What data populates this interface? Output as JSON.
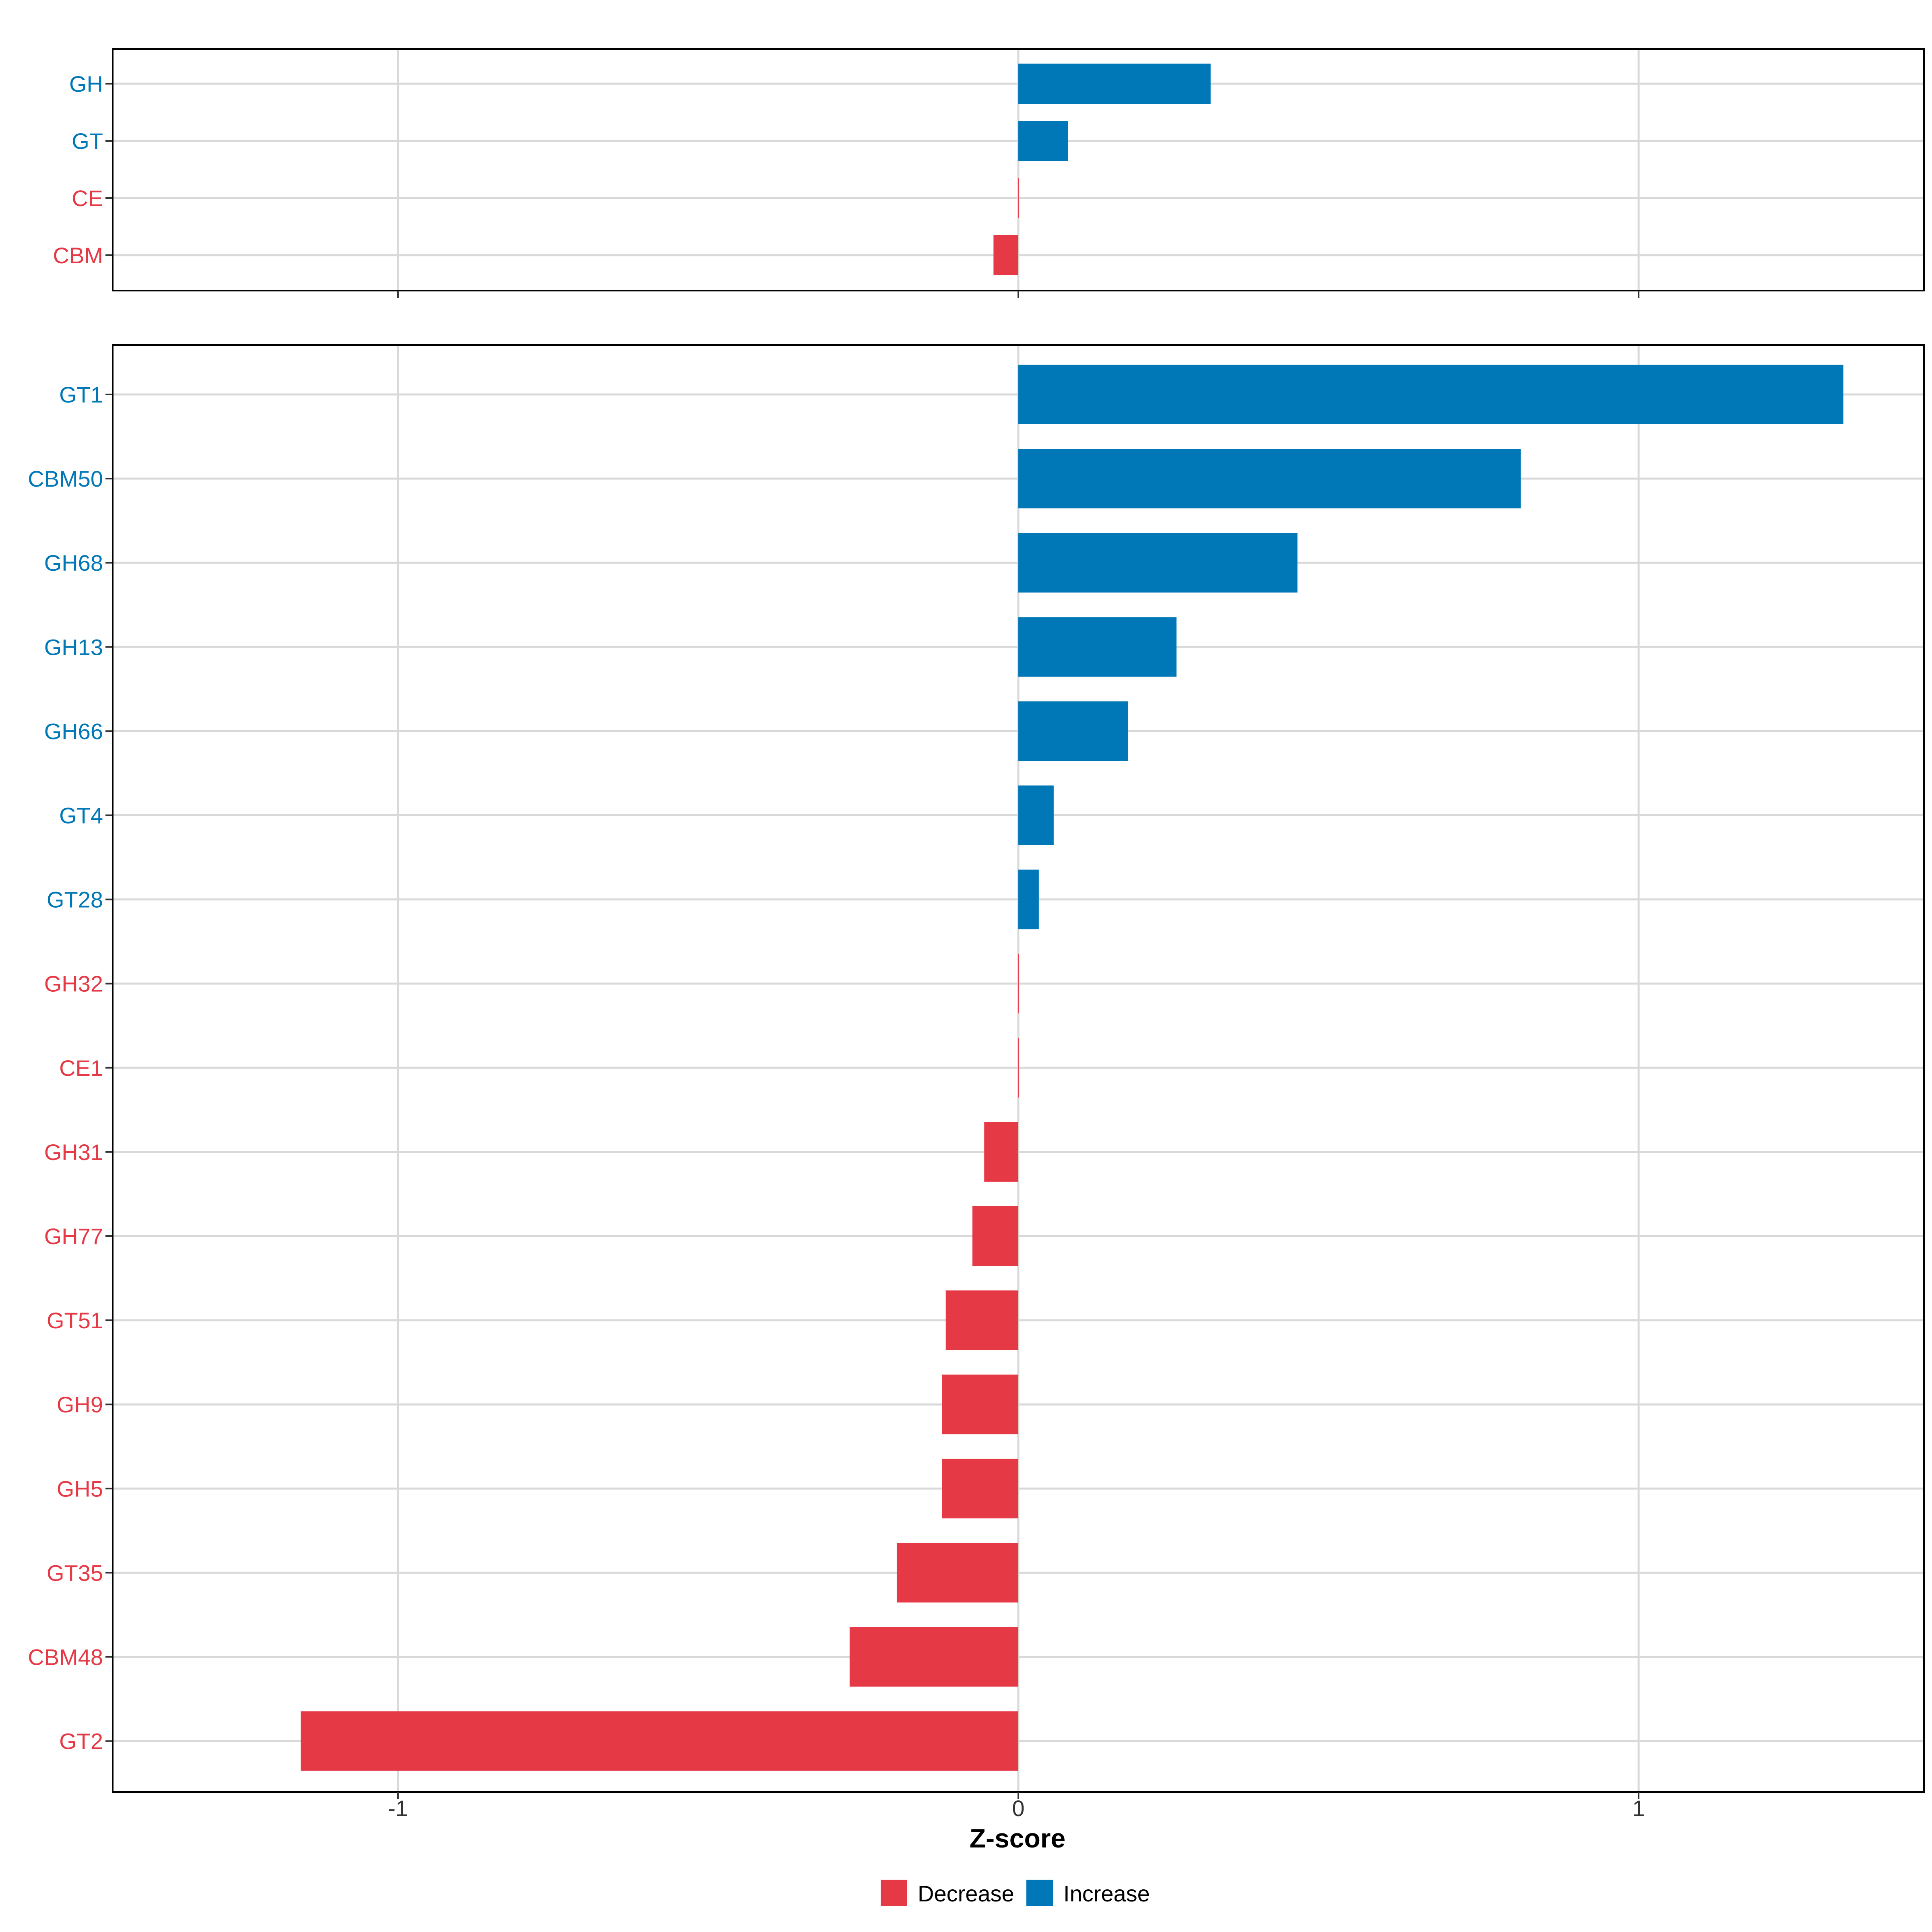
{
  "colors": {
    "decrease": "#E63946",
    "increase": "#0077B6",
    "grid": "#D9D9D9",
    "frame": "#000000",
    "text": "#333333"
  },
  "chart_data": {
    "type": "bar",
    "orientation": "horizontal",
    "xlabel": "Z-score",
    "xlim": [
      -1.46,
      1.46
    ],
    "x_ticks": [
      -1,
      0,
      1
    ],
    "x_tick_labels": [
      "-1",
      "0",
      "1"
    ],
    "grid": true,
    "legend": {
      "placement": "bottom",
      "entries": [
        {
          "key": "decrease",
          "label": "Decrease"
        },
        {
          "key": "increase",
          "label": "Increase"
        }
      ]
    },
    "panels": [
      {
        "id": "top",
        "bars": [
          {
            "label": "GH",
            "value": 0.31,
            "group": "increase"
          },
          {
            "label": "GT",
            "value": 0.08,
            "group": "increase"
          },
          {
            "label": "CE",
            "value": 0.0,
            "group": "decrease"
          },
          {
            "label": "CBM",
            "value": -0.04,
            "group": "decrease"
          }
        ]
      },
      {
        "id": "bottom",
        "bars": [
          {
            "label": "GT1",
            "value": 1.33,
            "group": "increase"
          },
          {
            "label": "CBM50",
            "value": 0.81,
            "group": "increase"
          },
          {
            "label": "GH68",
            "value": 0.45,
            "group": "increase"
          },
          {
            "label": "GH13",
            "value": 0.255,
            "group": "increase"
          },
          {
            "label": "GH66",
            "value": 0.177,
            "group": "increase"
          },
          {
            "label": "GT4",
            "value": 0.057,
            "group": "increase"
          },
          {
            "label": "GT28",
            "value": 0.033,
            "group": "increase"
          },
          {
            "label": "GH32",
            "value": 0.0,
            "group": "decrease"
          },
          {
            "label": "CE1",
            "value": 0.0,
            "group": "decrease"
          },
          {
            "label": "GH31",
            "value": -0.055,
            "group": "decrease"
          },
          {
            "label": "GH77",
            "value": -0.074,
            "group": "decrease"
          },
          {
            "label": "GT51",
            "value": -0.117,
            "group": "decrease"
          },
          {
            "label": "GH9",
            "value": -0.123,
            "group": "decrease"
          },
          {
            "label": "GH5",
            "value": -0.123,
            "group": "decrease"
          },
          {
            "label": "GT35",
            "value": -0.196,
            "group": "decrease"
          },
          {
            "label": "CBM48",
            "value": -0.272,
            "group": "decrease"
          },
          {
            "label": "GT2",
            "value": -1.157,
            "group": "decrease"
          }
        ]
      }
    ]
  }
}
